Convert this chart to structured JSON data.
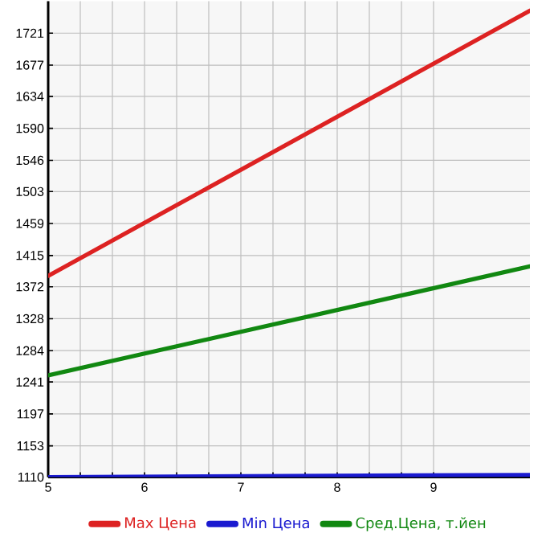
{
  "chart_data": {
    "type": "line",
    "x": [
      5,
      10
    ],
    "series": [
      {
        "name": "Max Цена",
        "color": "#dd2222",
        "values": [
          1387,
          1752
        ]
      },
      {
        "name": "Min Цена",
        "color": "#1a1ad0",
        "values": [
          1110,
          1113
        ]
      },
      {
        "name": "Сред.Цена, т.йен",
        "color": "#118811",
        "values": [
          1250,
          1400
        ]
      }
    ],
    "xlim": [
      5,
      10
    ],
    "xticks": [
      5,
      6,
      7,
      8,
      9
    ],
    "ylim": [
      1110,
      1765
    ],
    "yticks": [
      1110,
      1153,
      1197,
      1241,
      1284,
      1328,
      1372,
      1415,
      1459,
      1503,
      1546,
      1590,
      1634,
      1677,
      1721
    ],
    "grid": true,
    "legend": "bottom",
    "marker": "none",
    "line_style": "solid"
  }
}
